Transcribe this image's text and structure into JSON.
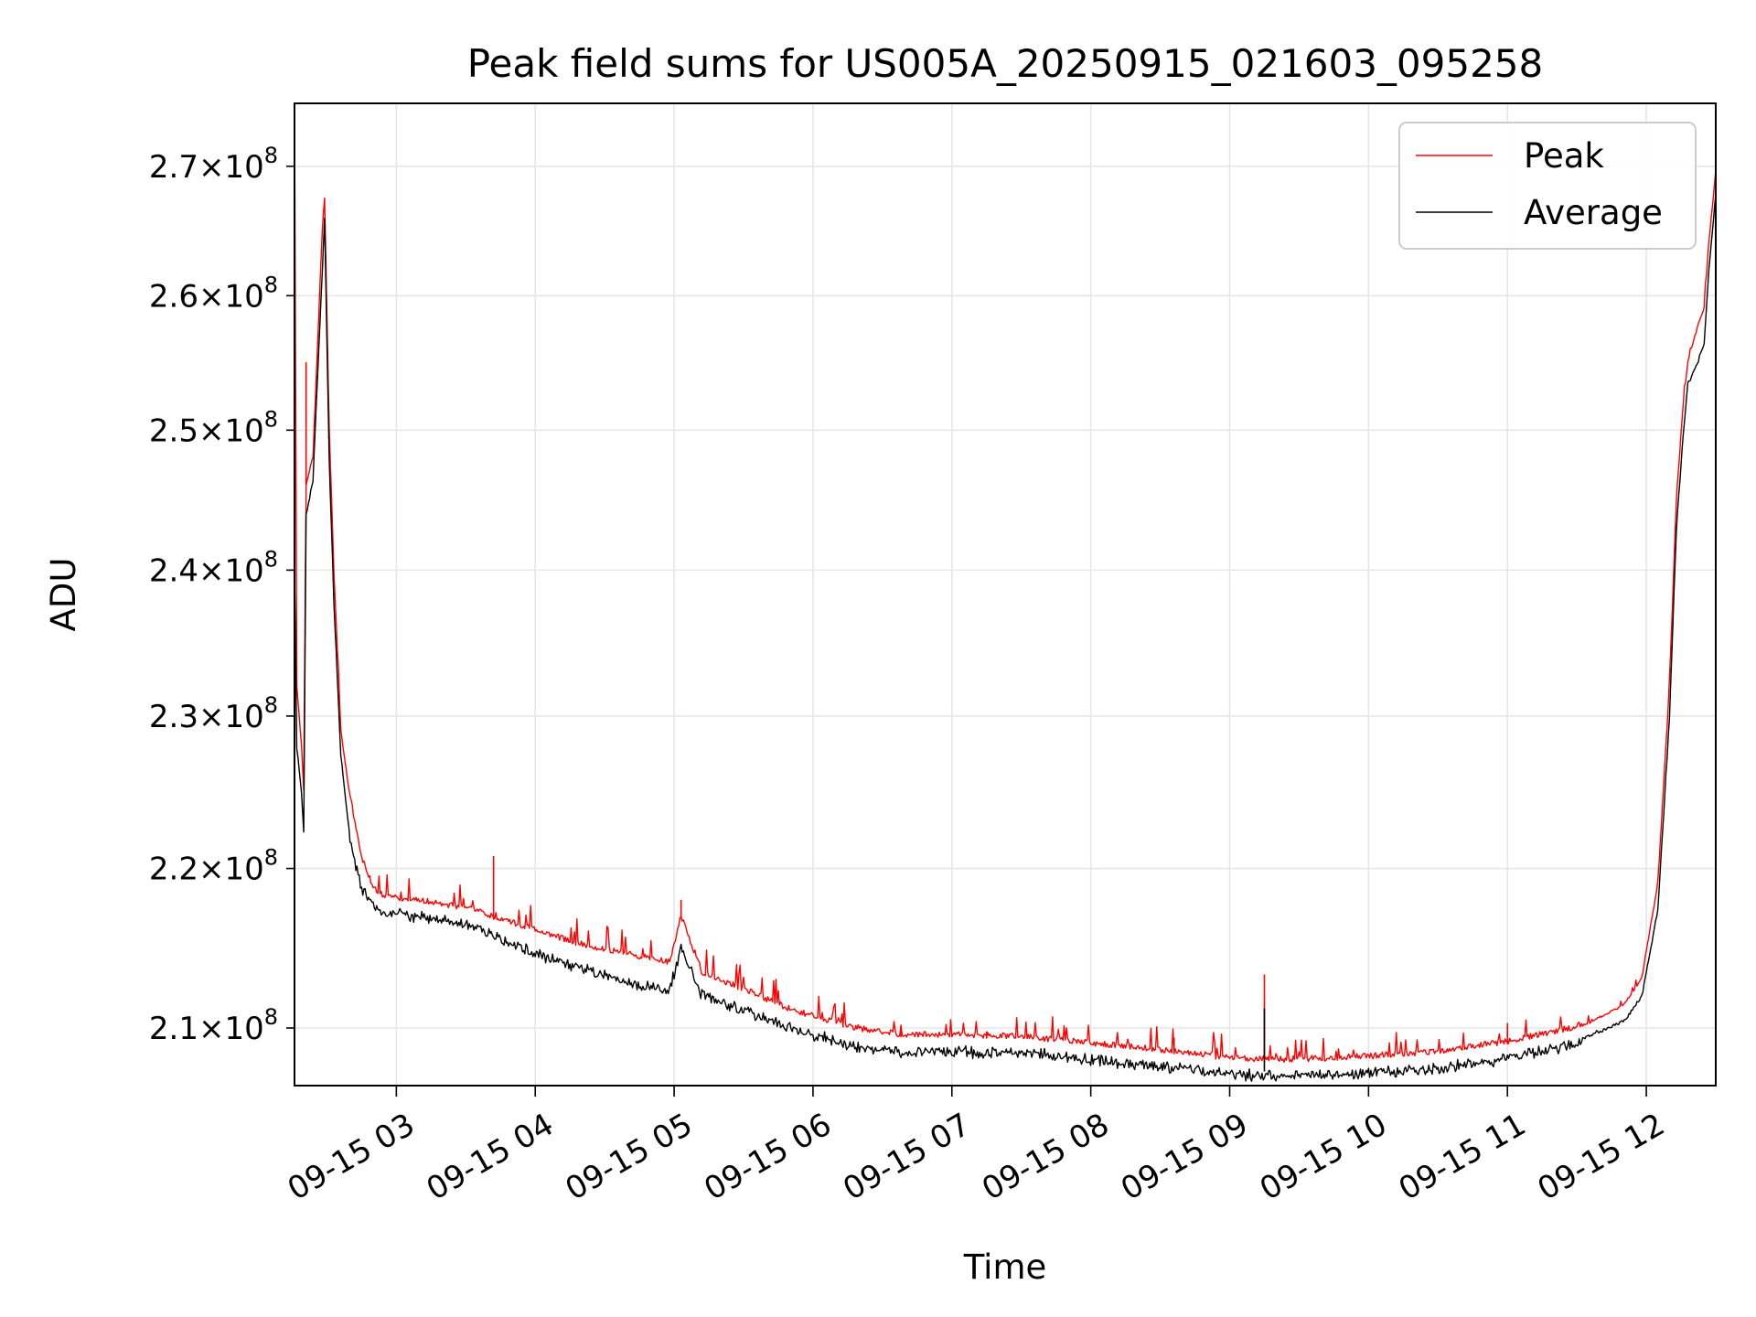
{
  "chart_data": {
    "type": "line",
    "title": "Peak field sums for US005A_20250915_021603_095258",
    "xlabel": "Time",
    "ylabel": "ADU",
    "yscale": "log",
    "xlim": [
      "2025-09-15 02:16",
      "2025-09-15 12:30"
    ],
    "ylim": [
      206500000,
      275000000
    ],
    "x_ticks": [
      "09-15 03",
      "09-15 04",
      "09-15 05",
      "09-15 06",
      "09-15 07",
      "09-15 08",
      "09-15 09",
      "09-15 10",
      "09-15 11",
      "09-15 12"
    ],
    "y_ticks": [
      {
        "value": 210000000,
        "mantissa": "2.1",
        "base": "10",
        "exp": "8"
      },
      {
        "value": 220000000,
        "mantissa": "2.2",
        "base": "10",
        "exp": "8"
      },
      {
        "value": 230000000,
        "mantissa": "2.3",
        "base": "10",
        "exp": "8"
      },
      {
        "value": 240000000,
        "mantissa": "2.4",
        "base": "10",
        "exp": "8"
      },
      {
        "value": 250000000,
        "mantissa": "2.5",
        "base": "10",
        "exp": "8"
      },
      {
        "value": 260000000,
        "mantissa": "2.6",
        "base": "10",
        "exp": "8"
      },
      {
        "value": 270000000,
        "mantissa": "2.7",
        "base": "10",
        "exp": "8"
      }
    ],
    "grid": true,
    "legend_position": "top-right",
    "series": [
      {
        "name": "Peak",
        "color": "#ff0000",
        "points": [
          [
            "2025-09-15 02:16",
            275000000
          ],
          [
            "2025-09-15 02:17",
            232000000
          ],
          [
            "2025-09-15 02:19",
            228000000
          ],
          [
            "2025-09-15 02:20",
            225000000
          ],
          [
            "2025-09-15 02:21",
            246000000
          ],
          [
            "2025-09-15 02:24",
            248000000
          ],
          [
            "2025-09-15 02:28",
            265000000
          ],
          [
            "2025-09-15 02:29",
            267500000
          ],
          [
            "2025-09-15 02:31",
            250000000
          ],
          [
            "2025-09-15 02:33",
            240000000
          ],
          [
            "2025-09-15 02:36",
            229000000
          ],
          [
            "2025-09-15 02:40",
            224500000
          ],
          [
            "2025-09-15 02:45",
            220500000
          ],
          [
            "2025-09-15 02:50",
            218600000
          ],
          [
            "2025-09-15 02:55",
            218000000
          ],
          [
            "2025-09-15 03:10",
            217800000
          ],
          [
            "2025-09-15 03:30",
            217300000
          ],
          [
            "2025-09-15 03:45",
            216600000
          ],
          [
            "2025-09-15 04:00",
            215900000
          ],
          [
            "2025-09-15 04:20",
            215000000
          ],
          [
            "2025-09-15 04:40",
            214400000
          ],
          [
            "2025-09-15 04:58",
            213900000
          ],
          [
            "2025-09-15 05:03",
            216800000
          ],
          [
            "2025-09-15 05:12",
            213300000
          ],
          [
            "2025-09-15 05:30",
            212200000
          ],
          [
            "2025-09-15 05:50",
            211000000
          ],
          [
            "2025-09-15 06:15",
            209900000
          ],
          [
            "2025-09-15 06:40",
            209400000
          ],
          [
            "2025-09-15 07:00",
            209400000
          ],
          [
            "2025-09-15 07:30",
            209300000
          ],
          [
            "2025-09-15 08:00",
            208900000
          ],
          [
            "2025-09-15 08:30",
            208500000
          ],
          [
            "2025-09-15 09:00",
            208000000
          ],
          [
            "2025-09-15 09:20",
            207900000
          ],
          [
            "2025-09-15 09:45",
            208000000
          ],
          [
            "2025-09-15 10:00",
            208100000
          ],
          [
            "2025-09-15 10:30",
            208400000
          ],
          [
            "2025-09-15 11:00",
            209000000
          ],
          [
            "2025-09-15 11:30",
            209900000
          ],
          [
            "2025-09-15 11:50",
            211300000
          ],
          [
            "2025-09-15 11:58",
            213000000
          ],
          [
            "2025-09-15 12:05",
            219000000
          ],
          [
            "2025-09-15 12:10",
            232000000
          ],
          [
            "2025-09-15 12:13",
            245000000
          ],
          [
            "2025-09-15 12:16",
            252000000
          ],
          [
            "2025-09-15 12:18",
            255000000
          ],
          [
            "2025-09-15 12:22",
            257500000
          ],
          [
            "2025-09-15 12:25",
            259000000
          ],
          [
            "2025-09-15 12:27",
            264000000
          ],
          [
            "2025-09-15 12:30",
            269500000
          ]
        ],
        "spikes": [
          [
            "2025-09-15 02:21",
            255000000
          ],
          [
            "2025-09-15 03:42",
            220800000
          ],
          [
            "2025-09-15 05:03",
            218000000
          ],
          [
            "2025-09-15 06:38",
            209800000
          ],
          [
            "2025-09-15 07:15",
            209800000
          ],
          [
            "2025-09-15 08:36",
            209400000
          ],
          [
            "2025-09-15 09:15",
            213300000
          ],
          [
            "2025-09-15 11:00",
            210300000
          ]
        ]
      },
      {
        "name": "Average",
        "color": "#000000",
        "points": [
          [
            "2025-09-15 02:16",
            240000000
          ],
          [
            "2025-09-15 02:17",
            228000000
          ],
          [
            "2025-09-15 02:19",
            225000000
          ],
          [
            "2025-09-15 02:20",
            222500000
          ],
          [
            "2025-09-15 02:21",
            244000000
          ],
          [
            "2025-09-15 02:24",
            246500000
          ],
          [
            "2025-09-15 02:28",
            262000000
          ],
          [
            "2025-09-15 02:29",
            266000000
          ],
          [
            "2025-09-15 02:31",
            248000000
          ],
          [
            "2025-09-15 02:33",
            238000000
          ],
          [
            "2025-09-15 02:36",
            227500000
          ],
          [
            "2025-09-15 02:40",
            222000000
          ],
          [
            "2025-09-15 02:45",
            219000000
          ],
          [
            "2025-09-15 02:50",
            217900000
          ],
          [
            "2025-09-15 02:55",
            217500000
          ],
          [
            "2025-09-15 03:10",
            217200000
          ],
          [
            "2025-09-15 03:30",
            216700000
          ],
          [
            "2025-09-15 03:45",
            215800000
          ],
          [
            "2025-09-15 04:00",
            214900000
          ],
          [
            "2025-09-15 04:20",
            213900000
          ],
          [
            "2025-09-15 04:40",
            213000000
          ],
          [
            "2025-09-15 04:58",
            212500000
          ],
          [
            "2025-09-15 05:03",
            215300000
          ],
          [
            "2025-09-15 05:12",
            212300000
          ],
          [
            "2025-09-15 05:30",
            211300000
          ],
          [
            "2025-09-15 05:50",
            210300000
          ],
          [
            "2025-09-15 06:15",
            209200000
          ],
          [
            "2025-09-15 06:40",
            208800000
          ],
          [
            "2025-09-15 07:00",
            208800000
          ],
          [
            "2025-09-15 07:30",
            208800000
          ],
          [
            "2025-09-15 08:00",
            208300000
          ],
          [
            "2025-09-15 08:30",
            207900000
          ],
          [
            "2025-09-15 09:00",
            207500000
          ],
          [
            "2025-09-15 09:20",
            207300000
          ],
          [
            "2025-09-15 09:45",
            207400000
          ],
          [
            "2025-09-15 10:00",
            207500000
          ],
          [
            "2025-09-15 10:30",
            207800000
          ],
          [
            "2025-09-15 11:00",
            208400000
          ],
          [
            "2025-09-15 11:30",
            209300000
          ],
          [
            "2025-09-15 11:50",
            210500000
          ],
          [
            "2025-09-15 11:58",
            212000000
          ],
          [
            "2025-09-15 12:05",
            217500000
          ],
          [
            "2025-09-15 12:10",
            230000000
          ],
          [
            "2025-09-15 12:13",
            243000000
          ],
          [
            "2025-09-15 12:16",
            250000000
          ],
          [
            "2025-09-15 12:18",
            253500000
          ],
          [
            "2025-09-15 12:22",
            255000000
          ],
          [
            "2025-09-15 12:25",
            256500000
          ],
          [
            "2025-09-15 12:27",
            262000000
          ],
          [
            "2025-09-15 12:30",
            268000000
          ]
        ],
        "spikes": [
          [
            "2025-09-15 09:15",
            211200000
          ]
        ]
      }
    ]
  }
}
